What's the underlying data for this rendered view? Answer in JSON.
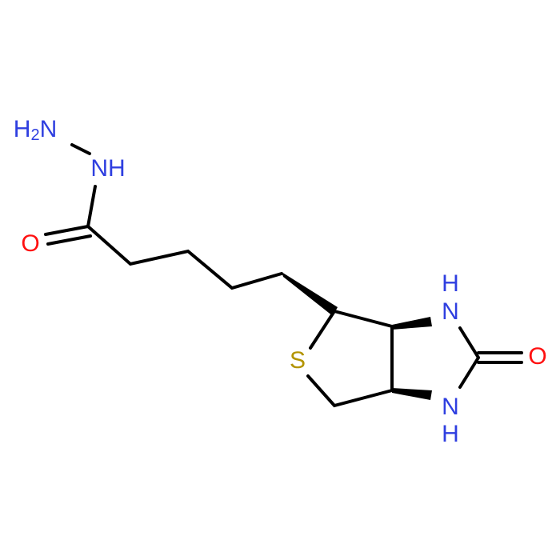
{
  "atoms": [
    {
      "label": "H2N"
    },
    {
      "label": "NH"
    },
    {
      "label": "O"
    },
    {
      "label": "S"
    },
    {
      "label": "H"
    },
    {
      "label": "N"
    },
    {
      "label": "N"
    },
    {
      "label": "H"
    },
    {
      "label": "O"
    }
  ]
}
